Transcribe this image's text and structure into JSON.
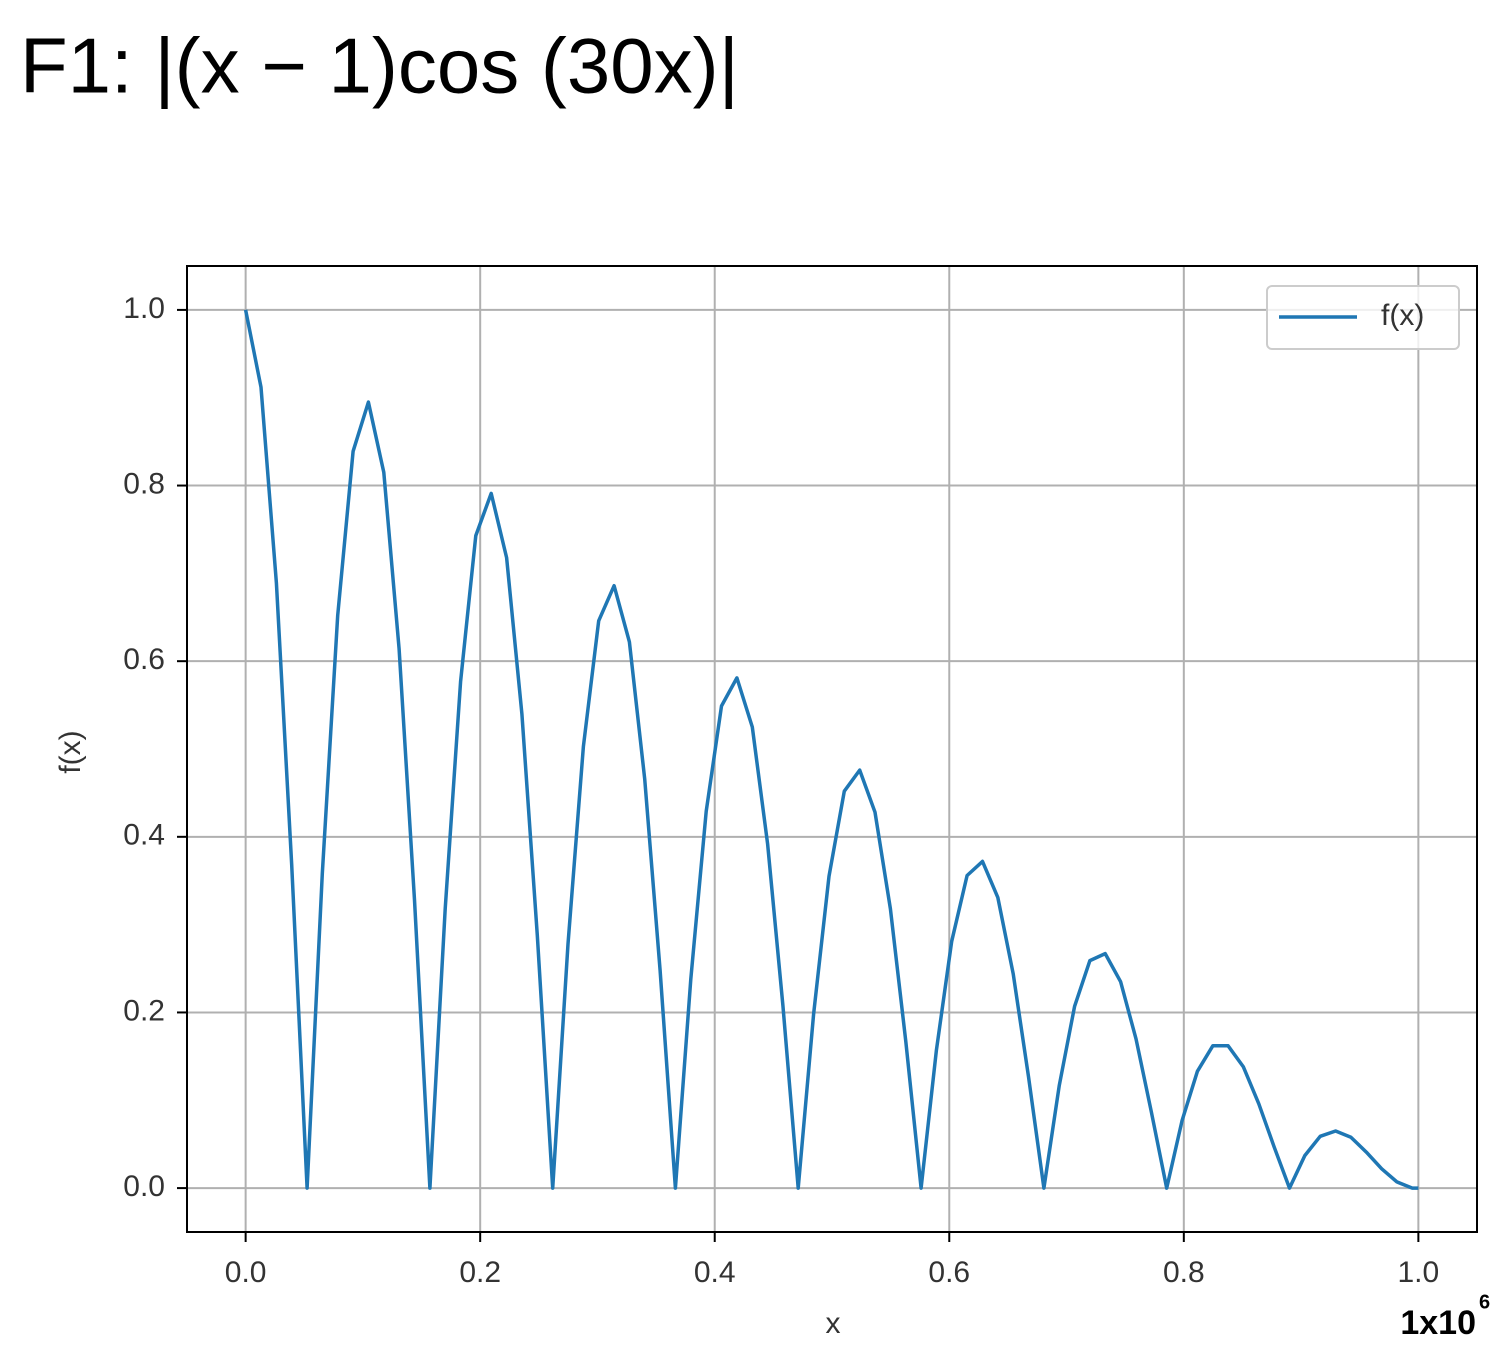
{
  "chart_data": {
    "type": "line",
    "title": "F1: |(x − 1)cos (30x)|",
    "x_label": "x",
    "y_label": "f(x)",
    "x_multiplier": {
      "base": "1x10",
      "exponent": "6"
    },
    "x": [
      0,
      0.0131,
      0.0262,
      0.0393,
      0.0524,
      0.0654,
      0.0785,
      0.0916,
      0.1047,
      0.1178,
      0.1309,
      0.144,
      0.1571,
      0.1702,
      0.1833,
      0.1963,
      0.2094,
      0.2225,
      0.2356,
      0.2487,
      0.2618,
      0.2749,
      0.288,
      0.3011,
      0.3142,
      0.3272,
      0.3403,
      0.3534,
      0.3665,
      0.3796,
      0.3927,
      0.4058,
      0.4189,
      0.432,
      0.4451,
      0.4581,
      0.4712,
      0.4843,
      0.4974,
      0.5105,
      0.5236,
      0.5367,
      0.5498,
      0.5629,
      0.576,
      0.589,
      0.6021,
      0.6152,
      0.6283,
      0.6414,
      0.6545,
      0.6676,
      0.6807,
      0.6938,
      0.7069,
      0.7199,
      0.733,
      0.7461,
      0.7592,
      0.7723,
      0.7854,
      0.7985,
      0.8116,
      0.8247,
      0.8378,
      0.8508,
      0.8639,
      0.877,
      0.8901,
      0.9032,
      0.9163,
      0.9294,
      0.9425,
      0.9556,
      0.9687,
      0.9817,
      0.9948,
      1.0
    ],
    "series": [
      {
        "name": "f(x)",
        "color": "#1f77b4",
        "values": [
          1,
          0.912,
          0.689,
          0.368,
          0,
          0.358,
          0.652,
          0.839,
          0.895,
          0.815,
          0.614,
          0.328,
          0,
          0.318,
          0.577,
          0.743,
          0.791,
          0.718,
          0.54,
          0.288,
          0,
          0.278,
          0.503,
          0.646,
          0.686,
          0.622,
          0.466,
          0.248,
          0,
          0.238,
          0.429,
          0.549,
          0.581,
          0.525,
          0.392,
          0.208,
          0,
          0.198,
          0.355,
          0.452,
          0.476,
          0.428,
          0.318,
          0.167,
          0,
          0.157,
          0.281,
          0.356,
          0.372,
          0.331,
          0.244,
          0.127,
          0,
          0.117,
          0.207,
          0.259,
          0.267,
          0.235,
          0.17,
          0.087,
          0,
          0.077,
          0.133,
          0.162,
          0.162,
          0.138,
          0.096,
          0.047,
          0,
          0.037,
          0.059,
          0.065,
          0.058,
          0.041,
          0.022,
          0.007,
          0,
          0
        ]
      }
    ],
    "xlim": [
      -0.05,
      1.05
    ],
    "ylim": [
      -0.05,
      1.05
    ],
    "xticks": [
      {
        "value": 0,
        "label": "0.0"
      },
      0.2,
      0.4,
      0.6,
      0.8,
      {
        "value": 1,
        "label": "1.0"
      }
    ],
    "yticks": [
      {
        "value": 0,
        "label": "0.0"
      },
      0.2,
      0.4,
      0.6,
      0.8,
      {
        "value": 1,
        "label": "1.0"
      }
    ],
    "grid": true,
    "legend": "upper right"
  }
}
